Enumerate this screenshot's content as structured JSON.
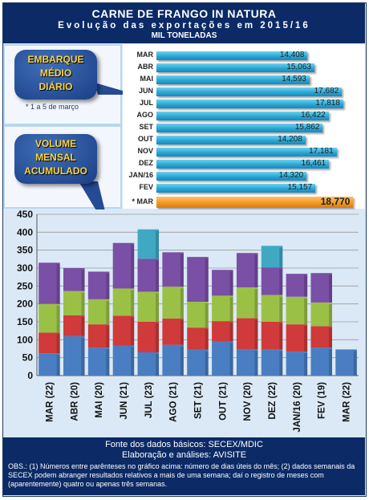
{
  "header": {
    "title": "CARNE DE FRANGO IN NATURA",
    "subtitle": "Evolução das exportações em 2015/16",
    "unit": "MIL TONELADAS"
  },
  "bubbles": {
    "daily": "EMBARQUE MÉDIO DIÁRIO",
    "daily_note": "* 1 a 5 de março",
    "monthly": "VOLUME MENSAL ACUMULADO"
  },
  "footer": {
    "source": "Fonte dos dados básicos: SECEX/MDIC",
    "analysis": "Elaboração e análises: AVISITE",
    "obs": "OBS.: (1) Números entre parênteses no gráfico acima: número de dias úteis do mês; (2) dados semanais da SECEX podem abranger resultados relativos a mais de uma semana; daí o registro de meses com (aparentemente) quatro ou apenas três semanas."
  },
  "chart_data": [
    {
      "type": "bar",
      "orientation": "horizontal",
      "categories": [
        "MAR",
        "ABR",
        "MAI",
        "JUN",
        "JUL",
        "AGO",
        "SET",
        "OUT",
        "NOV",
        "DEZ",
        "JAN/16",
        "FEV",
        "* MAR"
      ],
      "values": [
        14408,
        15063,
        14593,
        17682,
        17818,
        16422,
        15862,
        14208,
        17181,
        16461,
        14320,
        15157,
        18770
      ],
      "value_labels": [
        "14,408",
        "15,063",
        "14,593",
        "17,682",
        "17,818",
        "16,422",
        "15,862",
        "14,208",
        "17,181",
        "16,461",
        "14,320",
        "15,157",
        "18,770"
      ],
      "highlight_index": 12,
      "xlim": [
        0,
        19500
      ],
      "colors": {
        "bar": "#2aa7d6",
        "highlight": "#f19a24"
      }
    },
    {
      "type": "bar",
      "stacked": true,
      "categories": [
        "MAR (22)",
        "ABR (20)",
        "MAI (20)",
        "JUN (21)",
        "JUL (23)",
        "AGO (21)",
        "SET (21)",
        "OUT (21)",
        "NOV (20)",
        "DEZ (22)",
        "JAN/16 (20)",
        "FEV (19)",
        "MAR (22)"
      ],
      "series": [
        {
          "color": "#4a7ec2",
          "values": [
            62,
            110,
            78,
            84,
            65,
            86,
            72,
            95,
            73,
            73,
            67,
            78,
            73
          ]
        },
        {
          "color": "#d03a3a",
          "values": [
            58,
            58,
            65,
            83,
            85,
            73,
            62,
            57,
            87,
            77,
            76,
            60,
            0
          ]
        },
        {
          "color": "#9bc046",
          "values": [
            80,
            68,
            70,
            76,
            84,
            89,
            72,
            71,
            86,
            75,
            77,
            66,
            0
          ]
        },
        {
          "color": "#7a4fa6",
          "values": [
            115,
            64,
            77,
            127,
            92,
            96,
            125,
            72,
            96,
            77,
            64,
            82,
            0
          ]
        },
        {
          "color": "#3fa9c4",
          "values": [
            0,
            0,
            0,
            0,
            82,
            0,
            0,
            0,
            0,
            60,
            0,
            0,
            0
          ]
        }
      ],
      "ylim": [
        0,
        450
      ],
      "yticks": [
        0,
        50,
        100,
        150,
        200,
        250,
        300,
        350,
        400,
        450
      ],
      "grid": true
    }
  ]
}
